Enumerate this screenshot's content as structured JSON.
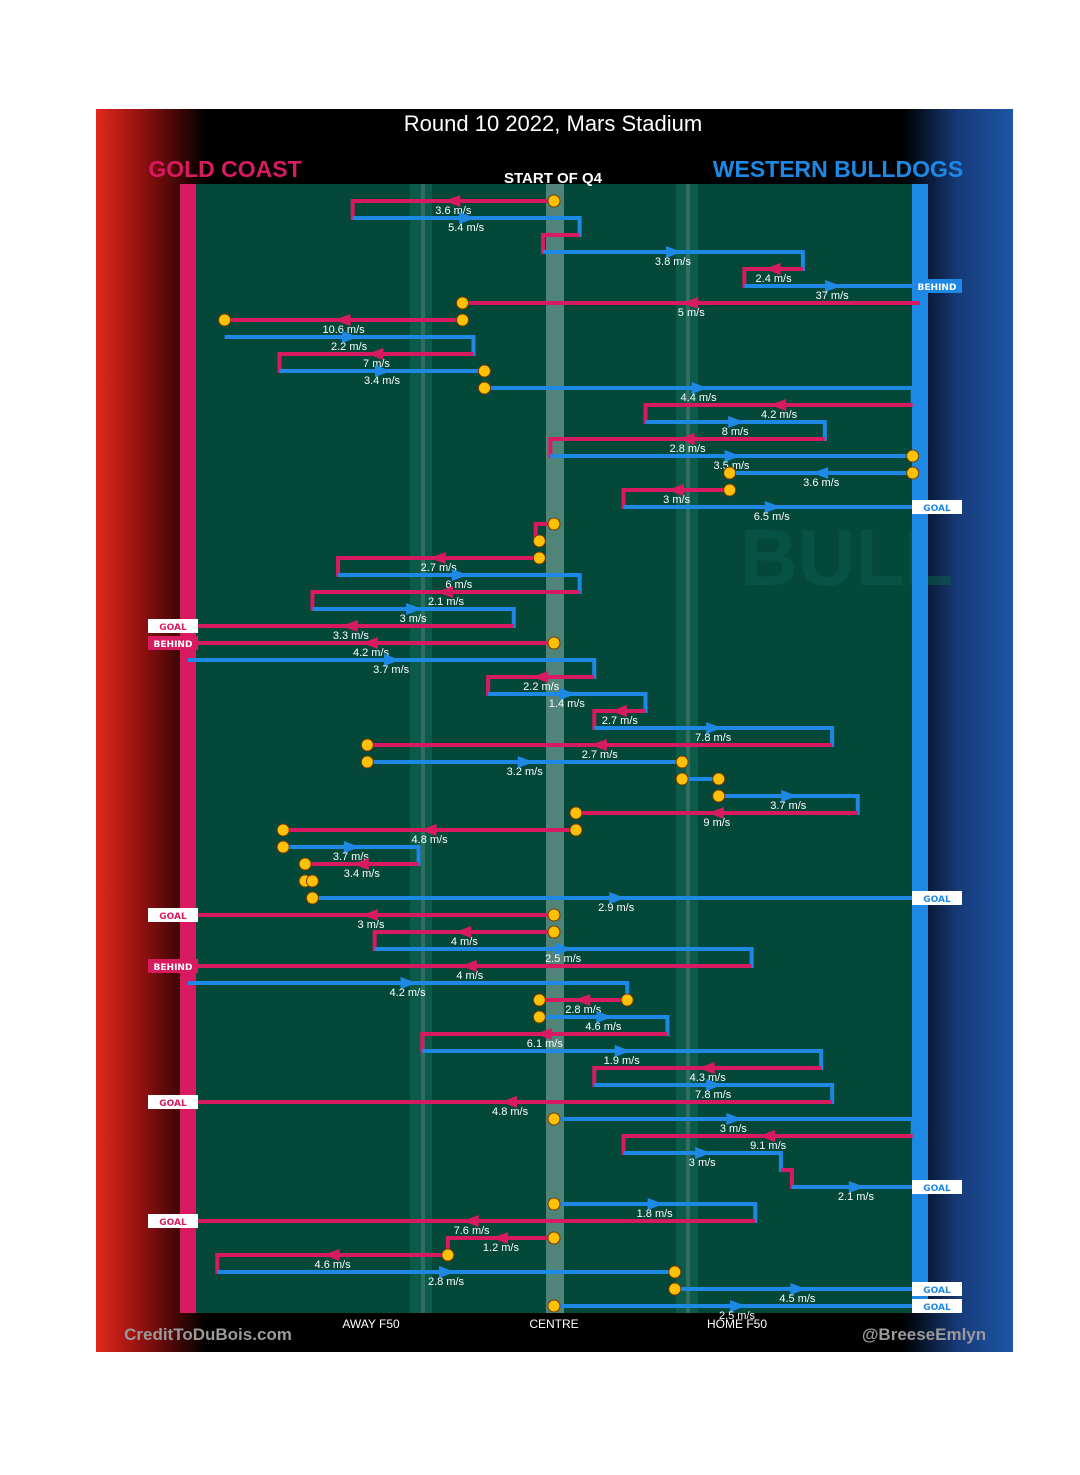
{
  "page": {
    "title": "Round 10 2022, Mars Stadium",
    "subtitle": "START OF Q4",
    "home_team": "WESTERN BULLDOGS",
    "away_team": "GOLD COAST",
    "credit_left": "CreditToDuBois.com",
    "credit_right": "@BreeseEmlyn",
    "watermark_text": "BULL"
  },
  "colors": {
    "gold_coast": "#d81b60",
    "bulldogs": "#1e88e5",
    "field": "#04483a",
    "stoppage": "#ffc107",
    "title_bg": "#000000"
  },
  "chart_data": {
    "type": "chain-flow",
    "title": "Round 10 2022, Mars Stadium",
    "subtitle": "START OF Q4",
    "x_axis": {
      "range": [
        -1,
        1
      ],
      "meaning": "field position, -1 = Gold Coast goal line, 1 = Western Bulldogs goal line",
      "tick_labels": [
        {
          "label": "AWAY F50",
          "x": -0.5
        },
        {
          "label": "CENTRE",
          "x": 0
        },
        {
          "label": "HOME F50",
          "x": 0.5
        }
      ]
    },
    "teams": {
      "GC": "GOLD COAST",
      "WB": "WESTERN BULLDOGS"
    },
    "segments": [
      {
        "team": "GC",
        "x1": 0.0,
        "x2": -0.55,
        "speed": "3.6 m/s",
        "start": "stop",
        "vert": "short"
      },
      {
        "team": "WB",
        "x1": -0.55,
        "x2": 0.07,
        "speed": "5.4 m/s",
        "vert": "short"
      },
      {
        "team": "GC",
        "x1": 0.07,
        "x2": -0.03,
        "vert": "short"
      },
      {
        "team": "WB",
        "x1": -0.03,
        "x2": 0.68,
        "speed": "3.8 m/s",
        "vert": "short"
      },
      {
        "team": "GC",
        "x1": 0.68,
        "x2": 0.52,
        "speed": "2.4 m/s",
        "vert": "short"
      },
      {
        "team": "WB",
        "x1": 0.52,
        "x2": 1.0,
        "speed": "37 m/s",
        "end": "BEHIND"
      },
      {
        "team": "GC",
        "x1": 1.0,
        "x2": -0.25,
        "speed": "5 m/s",
        "end": "stop"
      },
      {
        "team": "GC",
        "x1": -0.25,
        "x2": -0.9,
        "speed": "10.6 m/s",
        "start": "stop",
        "end": "stop"
      },
      {
        "team": "WB",
        "x1": -0.9,
        "x2": -0.22,
        "speed": "2.2 m/s",
        "vert": "short"
      },
      {
        "team": "GC",
        "x1": -0.22,
        "x2": -0.75,
        "speed": "7 m/s",
        "vert": "short"
      },
      {
        "team": "WB",
        "x1": -0.75,
        "x2": -0.19,
        "speed": "3.4 m/s",
        "end": "stop"
      },
      {
        "team": "WB",
        "x1": -0.19,
        "x2": 0.98,
        "speed": "4.4 m/s",
        "start": "stop",
        "vert": "short"
      },
      {
        "team": "GC",
        "x1": 0.98,
        "x2": 0.25,
        "speed": "4.2 m/s",
        "vert": "short"
      },
      {
        "team": "WB",
        "x1": 0.25,
        "x2": 0.74,
        "speed": "8 m/s",
        "vert": "short"
      },
      {
        "team": "GC",
        "x1": 0.74,
        "x2": -0.01,
        "speed": "2.8 m/s",
        "vert": "short"
      },
      {
        "team": "WB",
        "x1": -0.01,
        "x2": 0.98,
        "speed": "3.5 m/s",
        "end": "stop"
      },
      {
        "team": "WB",
        "x1": 0.98,
        "x2": 0.48,
        "speed": "3.6 m/s",
        "start": "stop",
        "end": "stop"
      },
      {
        "team": "GC",
        "x1": 0.48,
        "x2": 0.19,
        "speed": "3 m/s",
        "start": "stop",
        "vert": "short"
      },
      {
        "team": "WB",
        "x1": 0.19,
        "x2": 1.0,
        "speed": "6.5 m/s",
        "end": "GOAL"
      },
      {
        "team": "GC",
        "x1": 0.0,
        "x2": -0.05,
        "start": "stop",
        "vert": "short"
      },
      {
        "team": "GC",
        "x1": -0.05,
        "x2": -0.04,
        "end": "stop"
      },
      {
        "team": "GC",
        "x1": -0.04,
        "x2": -0.59,
        "speed": "2.7 m/s",
        "start": "stop",
        "vert": "short"
      },
      {
        "team": "WB",
        "x1": -0.59,
        "x2": 0.07,
        "speed": "6 m/s",
        "vert": "short"
      },
      {
        "team": "GC",
        "x1": 0.07,
        "x2": -0.66,
        "speed": "2.1 m/s",
        "vert": "short"
      },
      {
        "team": "WB",
        "x1": -0.66,
        "x2": -0.11,
        "speed": "3 m/s",
        "vert": "short"
      },
      {
        "team": "GC",
        "x1": -0.11,
        "x2": -1.0,
        "speed": "3.3 m/s",
        "end": "GOAL"
      },
      {
        "team": "GC",
        "x1": 0.0,
        "x2": -1.0,
        "speed": "4.2 m/s",
        "start": "stop",
        "end": "BEHIND"
      },
      {
        "team": "WB",
        "x1": -1.0,
        "x2": 0.11,
        "speed": "3.7 m/s",
        "vert": "short"
      },
      {
        "team": "GC",
        "x1": 0.11,
        "x2": -0.18,
        "speed": "2.2 m/s",
        "vert": "short"
      },
      {
        "team": "WB",
        "x1": -0.18,
        "x2": 0.25,
        "speed": "1.4 m/s",
        "vert": "short"
      },
      {
        "team": "GC",
        "x1": 0.25,
        "x2": 0.11,
        "speed": "2.7 m/s",
        "vert": "short"
      },
      {
        "team": "WB",
        "x1": 0.11,
        "x2": 0.76,
        "speed": "7.8 m/s",
        "vert": "short"
      },
      {
        "team": "GC",
        "x1": 0.76,
        "x2": -0.51,
        "speed": "2.7 m/s",
        "end": "stop"
      },
      {
        "team": "WB",
        "x1": -0.51,
        "x2": 0.35,
        "speed": "3.2 m/s",
        "start": "stop",
        "end": "stop"
      },
      {
        "team": "WB",
        "x1": 0.35,
        "x2": 0.45,
        "start": "stop",
        "end": "stop"
      },
      {
        "team": "WB",
        "x1": 0.45,
        "x2": 0.83,
        "speed": "3.7 m/s",
        "start": "stop",
        "vert": "short"
      },
      {
        "team": "GC",
        "x1": 0.83,
        "x2": 0.06,
        "speed": "9 m/s",
        "end": "stop"
      },
      {
        "team": "GC",
        "x1": 0.06,
        "x2": -0.74,
        "speed": "4.8 m/s",
        "start": "stop",
        "end": "stop"
      },
      {
        "team": "WB",
        "x1": -0.74,
        "x2": -0.37,
        "speed": "3.7 m/s",
        "start": "stop",
        "vert": "short"
      },
      {
        "team": "GC",
        "x1": -0.37,
        "x2": -0.68,
        "speed": "3.4 m/s",
        "end": "stop"
      },
      {
        "team": "GC",
        "x1": -0.68,
        "x2": -0.66,
        "start": "stop",
        "end": "stop"
      },
      {
        "team": "WB",
        "x1": -0.66,
        "x2": 1.0,
        "speed": "2.9 m/s",
        "start": "stop",
        "end": "GOAL"
      },
      {
        "team": "GC",
        "x1": 0.0,
        "x2": -1.0,
        "speed": "3 m/s",
        "start": "stop",
        "end": "GOAL"
      },
      {
        "team": "GC",
        "x1": 0.0,
        "x2": -0.49,
        "speed": "4 m/s",
        "start": "stop",
        "vert": "short"
      },
      {
        "team": "WB",
        "x1": -0.49,
        "x2": 0.54,
        "speed": "2.5 m/s",
        "vert": "short"
      },
      {
        "team": "GC",
        "x1": 0.54,
        "x2": -1.0,
        "speed": "4 m/s",
        "end": "BEHIND"
      },
      {
        "team": "WB",
        "x1": -1.0,
        "x2": 0.2,
        "speed": "4.2 m/s",
        "vert": "short"
      },
      {
        "team": "GC",
        "x1": 0.2,
        "x2": -0.04,
        "speed": "2.8 m/s",
        "start": "stop",
        "end": "stop"
      },
      {
        "team": "WB",
        "x1": -0.04,
        "x2": 0.31,
        "speed": "4.6 m/s",
        "start": "stop",
        "vert": "short"
      },
      {
        "team": "GC",
        "x1": 0.31,
        "x2": -0.36,
        "speed": "6.1 m/s",
        "vert": "short"
      },
      {
        "team": "WB",
        "x1": -0.36,
        "x2": 0.73,
        "speed": "1.9 m/s",
        "vert": "short"
      },
      {
        "team": "GC",
        "x1": 0.73,
        "x2": 0.11,
        "speed": "4.3 m/s",
        "vert": "short"
      },
      {
        "team": "WB",
        "x1": 0.11,
        "x2": 0.76,
        "speed": "7.8 m/s",
        "vert": "short"
      },
      {
        "team": "GC",
        "x1": 0.76,
        "x2": -1.0,
        "speed": "4.8 m/s",
        "end": "GOAL"
      },
      {
        "team": "WB",
        "x1": 0.0,
        "x2": 0.98,
        "speed": "3 m/s",
        "start": "stop",
        "vert": "short"
      },
      {
        "team": "GC",
        "x1": 0.98,
        "x2": 0.19,
        "speed": "9.1 m/s",
        "vert": "short"
      },
      {
        "team": "WB",
        "x1": 0.19,
        "x2": 0.62,
        "speed": "3 m/s",
        "vert": "short"
      },
      {
        "team": "GC",
        "x1": 0.62,
        "x2": 0.65,
        "vert": "short"
      },
      {
        "team": "WB",
        "x1": 0.65,
        "x2": 1.0,
        "speed": "2.1 m/s",
        "end": "GOAL"
      },
      {
        "team": "WB",
        "x1": 0.0,
        "x2": 0.55,
        "speed": "1.8 m/s",
        "start": "stop",
        "vert": "short"
      },
      {
        "team": "GC",
        "x1": 0.55,
        "x2": -1.0,
        "speed": "7.6 m/s",
        "end": "GOAL"
      },
      {
        "team": "GC",
        "x1": 0.0,
        "x2": -0.29,
        "speed": "1.2 m/s",
        "start": "stop",
        "vert": "short"
      },
      {
        "team": "GC",
        "x1": -0.29,
        "x2": -0.92,
        "speed": "4.6 m/s",
        "start": "stop",
        "vert": "short"
      },
      {
        "team": "WB",
        "x1": -0.92,
        "x2": 0.33,
        "speed": "2.8 m/s",
        "end": "stop"
      },
      {
        "team": "WB",
        "x1": 0.33,
        "x2": 1.0,
        "speed": "4.5 m/s",
        "start": "stop",
        "end": "GOAL"
      },
      {
        "team": "WB",
        "x1": 0.0,
        "x2": 1.0,
        "speed": "2.5 m/s",
        "start": "stop",
        "end": "GOAL"
      }
    ]
  }
}
